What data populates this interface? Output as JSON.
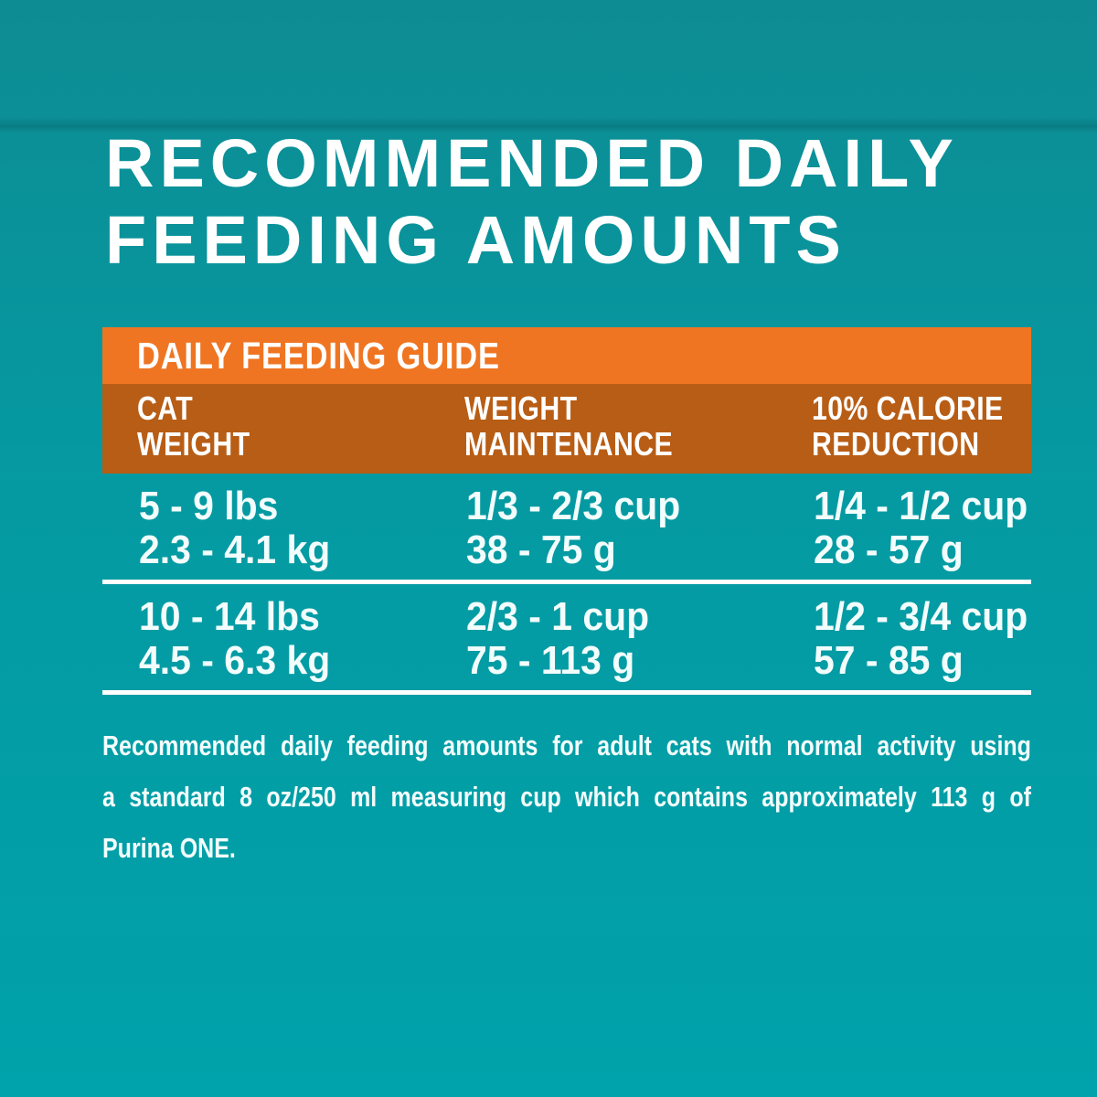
{
  "title": {
    "line1": "RECOMMENDED DAILY",
    "line2": "FEEDING AMOUNTS"
  },
  "table": {
    "title": "DAILY FEEDING GUIDE",
    "columns": [
      {
        "line1": "CAT",
        "line2": "WEIGHT"
      },
      {
        "line1": "WEIGHT",
        "line2": "MAINTENANCE"
      },
      {
        "line1": "10% CALORIE",
        "line2": "REDUCTION"
      }
    ],
    "rows": [
      {
        "weight_lbs": "5 - 9 lbs",
        "weight_kg": "2.3 - 4.1 kg",
        "maintenance_cups": "1/3 - 2/3 cup",
        "maintenance_grams": "38 - 75 g",
        "reduction_cups": "1/4 - 1/2 cup",
        "reduction_grams": "28 - 57 g"
      },
      {
        "weight_lbs": "10 - 14 lbs",
        "weight_kg": "4.5 - 6.3 kg",
        "maintenance_cups": "2/3 - 1 cup",
        "maintenance_grams": "75 - 113 g",
        "reduction_cups": "1/2 - 3/4 cup",
        "reduction_grams": "57 - 85 g"
      }
    ]
  },
  "footnote": {
    "text": "Recommended daily feeding amounts for adult cats with normal activity using a standard 8 oz/250 ml measuring cup which contains approximately 113 g of Purina ONE.",
    "lines": [
      "Recommended daily feeding amounts for adult cats with normal activity using",
      "a standard 8 oz/250 ml measuring cup which contains approximately 113 g of",
      "Purina ONE."
    ]
  },
  "colors": {
    "teal_top": "#0e8c93",
    "teal_bottom": "#00a2ab",
    "orange": "#ef7522",
    "dark_orange": "#b85d15",
    "text_white": "#ffffff",
    "divider_white": "#ffffff"
  }
}
